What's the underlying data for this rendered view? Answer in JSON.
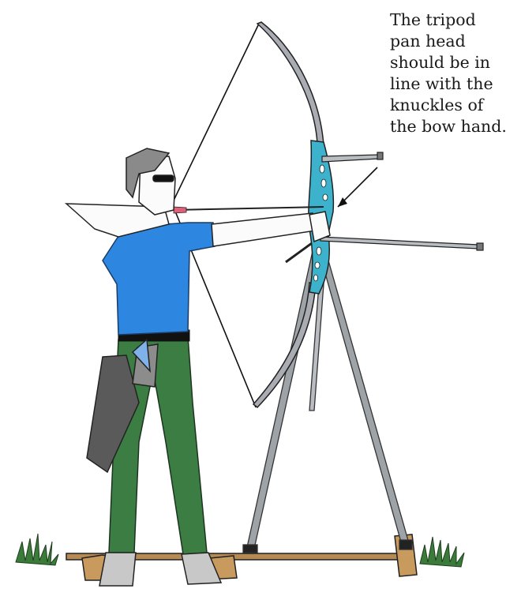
{
  "annotation": {
    "lines": [
      "The tripod",
      "pan head",
      "should be in",
      "line with the",
      "knuckles of",
      "the bow hand."
    ]
  },
  "colors": {
    "shirt": "#2d86e0",
    "pants": "#3c7d44",
    "riser": "#3cb2cc",
    "limbs": "#a9adb3",
    "skin": "#fbfbfb",
    "grass": "#3b7b3a",
    "board": "#b58a55",
    "quiver": "#5a5a5a"
  }
}
